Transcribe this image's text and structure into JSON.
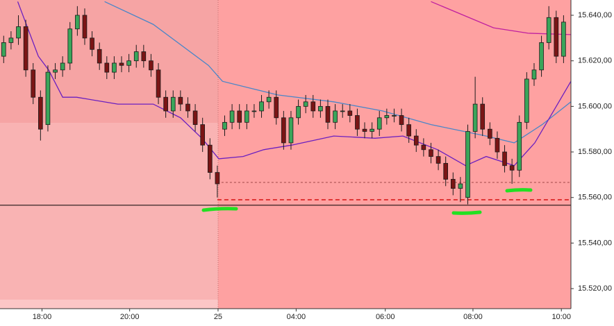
{
  "chart_data": {
    "type": "candlestick",
    "x": [
      0,
      1,
      2,
      3,
      4,
      5,
      6,
      7,
      8,
      9,
      10,
      11,
      12,
      13,
      14,
      15,
      16,
      17,
      18,
      19,
      20,
      21,
      22,
      23,
      24,
      25,
      26,
      27,
      28,
      29,
      30,
      31,
      32,
      33,
      34,
      35,
      36,
      37,
      38,
      39,
      40,
      41,
      42,
      43,
      44,
      45,
      46,
      47,
      48,
      49,
      50,
      51,
      52,
      53,
      54,
      55,
      56,
      57,
      58,
      59,
      60,
      61,
      62,
      63,
      64,
      65,
      66,
      67,
      68,
      69,
      70,
      71,
      72,
      73,
      74,
      75,
      76
    ],
    "open": [
      15622,
      15628,
      15630,
      15635,
      15616,
      15604,
      15592,
      15615,
      15616,
      15619,
      15634,
      15640,
      15630,
      15625,
      15619,
      15615,
      15619,
      15618,
      15620,
      15624,
      15620,
      15616,
      15604,
      15598,
      15604,
      15601,
      15598,
      15592,
      15583,
      15571,
      15590,
      15593,
      15598,
      15593,
      15598,
      15598,
      15602,
      15604,
      15595,
      15584,
      15595,
      15600,
      15602,
      15598,
      15600,
      15593,
      15598,
      15598,
      15596,
      15590,
      15589,
      15590,
      15595,
      15596,
      15596,
      15592,
      15587,
      15583,
      15581,
      15578,
      15575,
      15568,
      15564,
      15560,
      15589,
      15601,
      15590,
      15586,
      15580,
      15574,
      15572,
      15593,
      15612,
      15616,
      15628,
      15639,
      15622
    ],
    "high": [
      15631,
      15633,
      15640,
      15638,
      15619,
      15607,
      15618,
      15619,
      15622,
      15637,
      15644,
      15643,
      15633,
      15628,
      15622,
      15622,
      15622,
      15623,
      15627,
      15627,
      15623,
      15619,
      15607,
      15607,
      15607,
      15604,
      15601,
      15595,
      15586,
      15574,
      15596,
      15601,
      15601,
      15601,
      15601,
      15605,
      15607,
      15607,
      15598,
      15598,
      15603,
      15605,
      15605,
      15603,
      15603,
      15601,
      15601,
      15601,
      15599,
      15593,
      15593,
      15598,
      15599,
      15599,
      15599,
      15595,
      15590,
      15586,
      15584,
      15581,
      15578,
      15571,
      15569,
      15592,
      15613,
      15604,
      15593,
      15589,
      15583,
      15577,
      15596,
      15615,
      15619,
      15631,
      15644,
      15642,
      15640
    ],
    "low": [
      15619,
      15625,
      15627,
      15613,
      15601,
      15585,
      15589,
      15612,
      15613,
      15616,
      15631,
      15627,
      15622,
      15616,
      15612,
      15612,
      15615,
      15615,
      15617,
      15617,
      15613,
      15601,
      15595,
      15595,
      15598,
      15595,
      15589,
      15580,
      15568,
      15560,
      15587,
      15590,
      15590,
      15590,
      15595,
      15595,
      15599,
      15592,
      15581,
      15581,
      15592,
      15597,
      15595,
      15595,
      15590,
      15590,
      15595,
      15593,
      15587,
      15586,
      15586,
      15587,
      15592,
      15593,
      15589,
      15584,
      15580,
      15578,
      15575,
      15572,
      15565,
      15561,
      15558,
      15557,
      15586,
      15587,
      15583,
      15577,
      15571,
      15566,
      15569,
      15590,
      15609,
      15613,
      15625,
      15619,
      15619
    ],
    "close": [
      15628,
      15630,
      15635,
      15616,
      15604,
      15590,
      15615,
      15616,
      15619,
      15634,
      15640,
      15630,
      15625,
      15619,
      15615,
      15619,
      15618,
      15620,
      15624,
      15620,
      15616,
      15604,
      15598,
      15604,
      15601,
      15598,
      15592,
      15583,
      15571,
      15566,
      15593,
      15598,
      15593,
      15598,
      15598,
      15602,
      15604,
      15595,
      15584,
      15595,
      15600,
      15602,
      15598,
      15600,
      15593,
      15598,
      15598,
      15596,
      15590,
      15589,
      15590,
      15595,
      15596,
      15596,
      15592,
      15587,
      15583,
      15581,
      15578,
      15575,
      15568,
      15564,
      15566,
      15589,
      15601,
      15590,
      15586,
      15580,
      15574,
      15572,
      15593,
      15612,
      15616,
      15628,
      15639,
      15622,
      15637
    ],
    "up_color": "#3aa55a",
    "down_color": "#7a1515",
    "xlim": [
      -0.5,
      77
    ],
    "ylim": [
      15511.2,
      15646.7
    ],
    "xticks": [
      {
        "value": 5.2,
        "label": "18:00"
      },
      {
        "value": 17.1,
        "label": "20:00"
      },
      {
        "value": 29.1,
        "label": "25"
      },
      {
        "value": 39.7,
        "label": "04:00"
      },
      {
        "value": 51.8,
        "label": "06:00"
      },
      {
        "value": 63.7,
        "label": "08:00"
      },
      {
        "value": 75.7,
        "label": "10:00"
      }
    ],
    "yticks": [
      {
        "value": 15520,
        "label": "15.520,00"
      },
      {
        "value": 15540,
        "label": "15.540,00"
      },
      {
        "value": 15560,
        "label": "15.560,00"
      },
      {
        "value": 15580,
        "label": "15.580,00"
      },
      {
        "value": 15600,
        "label": "15.600,00"
      },
      {
        "value": 15620,
        "label": "15.620,00"
      },
      {
        "value": 15640,
        "label": "15.640,00"
      }
    ],
    "lines": [
      {
        "color": "#4a86c8",
        "x": [
          13.7,
          20.3,
          27.8,
          29.7,
          37.2,
          44.8,
          51.4,
          58,
          65.5,
          69.3,
          73.1,
          77
        ],
        "values": [
          15646,
          15636,
          15618,
          15611,
          15605,
          15602,
          15598,
          15592,
          15587,
          15584,
          15592,
          15602
        ]
      },
      {
        "color": "#6a1fc0",
        "x": [
          1.9,
          4.7,
          6.1,
          8,
          9.9,
          15.5,
          20.3,
          24,
          26.9,
          29.2,
          32.5,
          35.3,
          39.1,
          44.8,
          50.4,
          54.2,
          58.9,
          62.7,
          65.5,
          69.3,
          72.1,
          75,
          77
        ],
        "values": [
          15646,
          15622,
          15616,
          15604,
          15604,
          15601,
          15601,
          15595,
          15586,
          15577,
          15578,
          15581,
          15583,
          15587,
          15586,
          15587,
          15581,
          15574,
          15578,
          15574,
          15584,
          15600,
          15611
        ]
      },
      {
        "color": "#c020a0",
        "x": [
          58,
          66.5,
          71.2,
          77
        ],
        "values": [
          15646,
          15634.5,
          15632.1,
          15631.5
        ]
      }
    ],
    "levels": [
      {
        "value": 15556.6,
        "color": "#000000",
        "style": "solid",
        "x_from": -0.5
      },
      {
        "value": 15559,
        "color": "#e03535",
        "style": "dashed",
        "x_from": 29
      },
      {
        "value": 15566.6,
        "color": "#a04545",
        "style": "dotted",
        "x_from": 29
      }
    ]
  }
}
